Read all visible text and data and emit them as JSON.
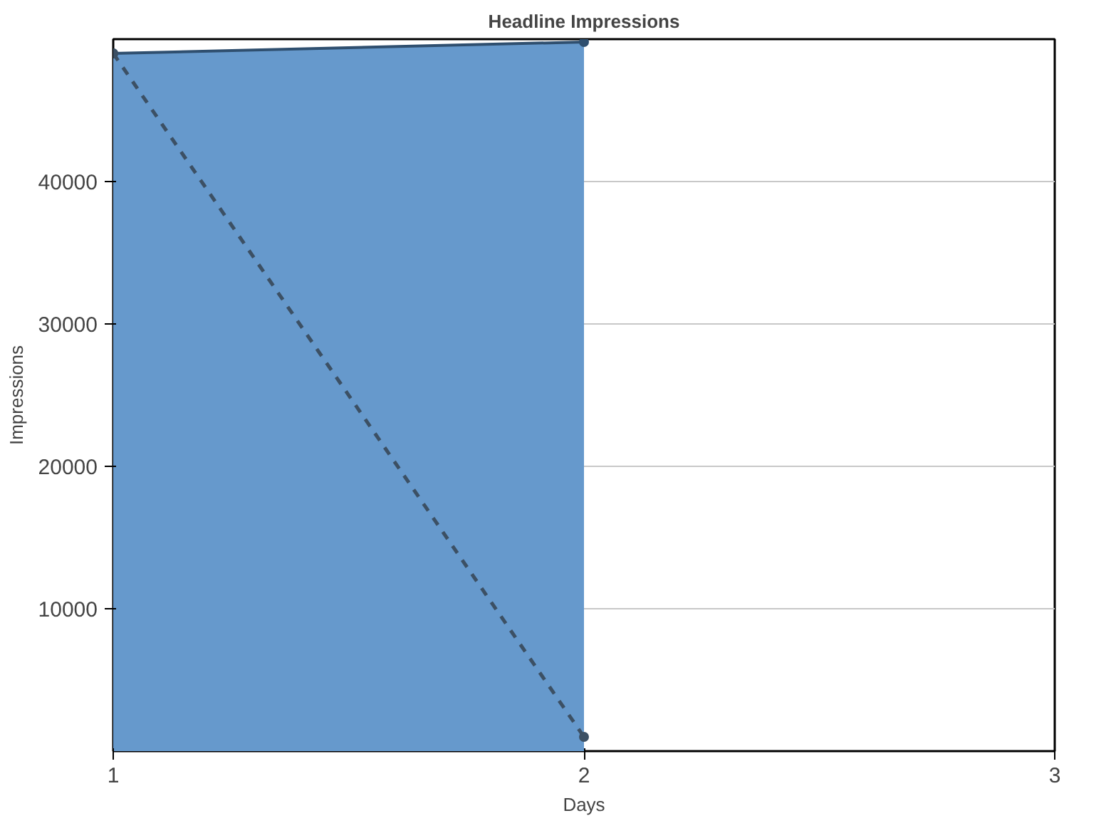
{
  "chart_data": {
    "type": "area",
    "title": "Headline Impressions",
    "xlabel": "Days",
    "ylabel": "Impressions",
    "x": [
      1,
      2
    ],
    "series": [
      {
        "color": "#6699cc",
        "values": [
          49000,
          49800
        ],
        "line_style": "solid"
      },
      {
        "type": "line",
        "color": "#3c5064",
        "values": [
          49000,
          1000
        ],
        "line_style": "dashed"
      }
    ],
    "xlim": [
      1,
      3
    ],
    "xticks": [
      1,
      2,
      3
    ],
    "ylim": [
      0,
      50000
    ],
    "yticks": [
      10000,
      20000,
      30000,
      40000
    ],
    "grid": "y",
    "marker": "circle"
  }
}
